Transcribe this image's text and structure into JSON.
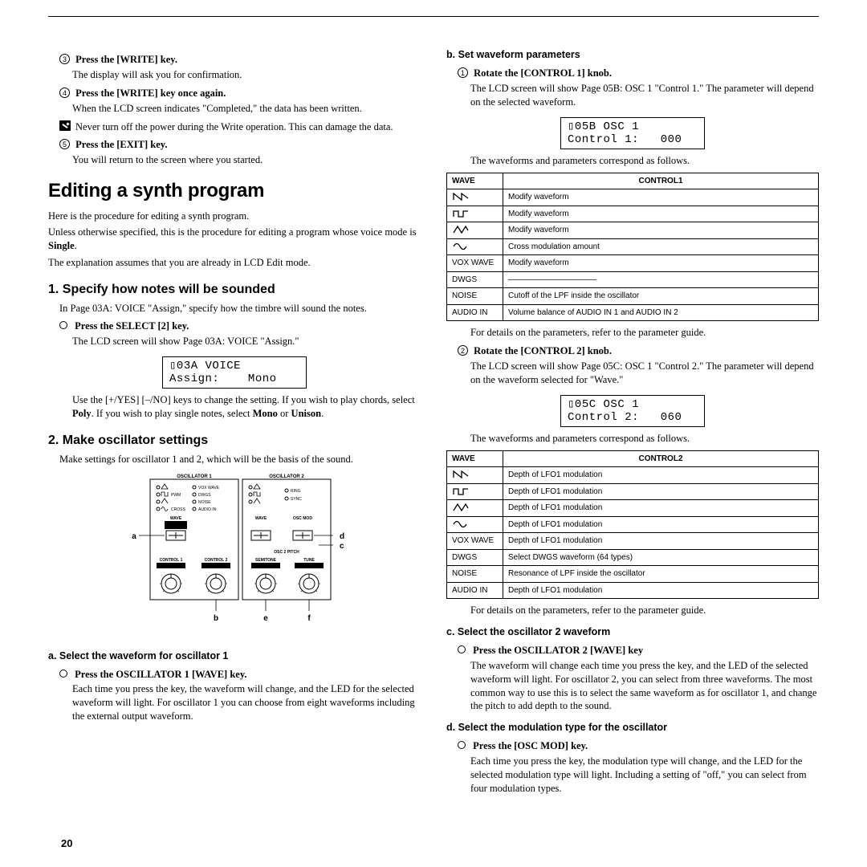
{
  "page_number": "20",
  "left": {
    "step3_label": "Press the [WRITE] key.",
    "step3_body": "The display will ask you for confirmation.",
    "step4_label": "Press the [WRITE] key once again.",
    "step4_body": "When the LCD screen indicates \"Completed,\" the data has been written.",
    "warn": "Never turn off the power during the Write operation. This can damage the data.",
    "step5_label": "Press the [EXIT] key.",
    "step5_body": "You will return to the screen where you started.",
    "h1": "Editing a synth program",
    "intro1": "Here is the procedure for editing a synth program.",
    "intro2_a": "Unless otherwise specified, this is the procedure for editing a program whose voice mode is ",
    "intro2_b": "Single",
    "intro2_c": ".",
    "intro3": "The explanation assumes that you are already in LCD Edit mode.",
    "sec1_h2": "1. Specify how notes will be sounded",
    "sec1_body": "In Page 03A: VOICE \"Assign,\" specify how the timbre will sound the notes.",
    "sec1_step_label": "Press the SELECT [2] key.",
    "sec1_step_body": "The LCD screen will show Page 03A: VOICE \"Assign.\"",
    "lcd1_line1": "▯03A VOICE",
    "lcd1_line2": "Assign:    Mono",
    "sec1_tail_a": "Use the [+/YES] [–/NO] keys to change the setting. If you wish to play chords, select ",
    "sec1_tail_b": "Poly",
    "sec1_tail_c": ". If you wish to play single notes, select ",
    "sec1_tail_d": "Mono",
    "sec1_tail_e": " or ",
    "sec1_tail_f": "Unison",
    "sec1_tail_g": ".",
    "sec2_h2": "2. Make oscillator settings",
    "sec2_body": "Make settings for oscillator 1 and 2, which will be the basis of the sound.",
    "osc_panel": {
      "osc1_title": "OSCILLATOR 1",
      "osc2_title": "OSCILLATOR 2",
      "labels": {
        "vox_wave": "VOX WAVE",
        "dwgs": "DWGS",
        "noise": "NOISE",
        "pwm": "PWM",
        "cross": "CROSS",
        "audio_in": "AUDIO IN",
        "ring": "RING",
        "sync": "SYNC",
        "wave": "WAVE",
        "osc_mod": "OSC MOD",
        "osc2_pitch": "OSC 2 PITCH",
        "control1": "CONTROL 1",
        "control2": "CONTROL 2",
        "semitone": "SEMITONE",
        "tune": "TUNE"
      },
      "callouts": {
        "a": "a",
        "b": "b",
        "c": "c",
        "d": "d",
        "e": "e",
        "f": "f"
      }
    },
    "sec2a_h3": "a. Select the waveform for oscillator 1",
    "sec2a_step_label": "Press the OSCILLATOR 1 [WAVE] key.",
    "sec2a_step_body": "Each time you press the key, the waveform will change, and the LED for the selected waveform will light. For oscillator 1 you can choose from eight waveforms including the external output waveform."
  },
  "right": {
    "secb_h3": "b. Set waveform parameters",
    "secb_step1_label": "Rotate the [CONTROL 1] knob.",
    "secb_step1_body": "The LCD screen will show Page 05B: OSC 1 \"Control 1.\" The parameter will depend on the selected waveform.",
    "lcd2_line1": "▯05B OSC 1",
    "lcd2_line2": "Control 1:   000",
    "secb_tail": "The waveforms and parameters correspond as follows.",
    "table1": {
      "head_wave": "WAVE",
      "head_ctrl": "CONTROL1",
      "rows": [
        {
          "wave": "saw",
          "text": "Modify waveform"
        },
        {
          "wave": "pulse",
          "text": "Modify waveform"
        },
        {
          "wave": "tri",
          "text": "Modify waveform"
        },
        {
          "wave": "sine",
          "text": "Cross modulation amount"
        },
        {
          "wave": "VOX WAVE",
          "text": "Modify waveform"
        },
        {
          "wave": "DWGS",
          "text": "———————————"
        },
        {
          "wave": "NOISE",
          "text": "Cutoff of the LPF inside the oscillator"
        },
        {
          "wave": "AUDIO IN",
          "text": "Volume balance of AUDIO IN 1 and AUDIO IN 2"
        }
      ]
    },
    "secb_after": "For details on the parameters, refer to the parameter guide.",
    "secb_step2_label": "Rotate the [CONTROL 2] knob.",
    "secb_step2_body": "The LCD screen will show Page 05C: OSC 1 \"Control 2.\" The parameter will depend on the waveform selected for \"Wave.\"",
    "lcd3_line1": "▯05C OSC 1",
    "lcd3_line2": "Control 2:   060",
    "secb_tail2": "The waveforms and parameters correspond as follows.",
    "table2": {
      "head_wave": "WAVE",
      "head_ctrl": "CONTROL2",
      "rows": [
        {
          "wave": "saw",
          "text": "Depth of LFO1 modulation"
        },
        {
          "wave": "pulse",
          "text": "Depth of LFO1 modulation"
        },
        {
          "wave": "tri",
          "text": "Depth of LFO1 modulation"
        },
        {
          "wave": "sine",
          "text": "Depth of LFO1 modulation"
        },
        {
          "wave": "VOX WAVE",
          "text": "Depth of LFO1 modulation"
        },
        {
          "wave": "DWGS",
          "text": "Select DWGS waveform (64 types)"
        },
        {
          "wave": "NOISE",
          "text": "Resonance of LPF inside the oscillator"
        },
        {
          "wave": "AUDIO IN",
          "text": "Depth of LFO1 modulation"
        }
      ]
    },
    "secb_after2": "For details on the parameters, refer to the parameter guide.",
    "secc_h3": "c. Select the oscillator 2 waveform",
    "secc_step_label": "Press the OSCILLATOR 2 [WAVE] key",
    "secc_step_body": "The waveform will change each time you press the key, and the LED of the selected waveform will light. For oscillator 2, you can select from three waveforms. The most common way to use this is to select the same waveform as for oscillator 1, and change the pitch to add depth to the sound.",
    "secd_h3": "d. Select the modulation type for the oscillator",
    "secd_step_label": "Press the [OSC MOD] key.",
    "secd_step_body": "Each time you press the key, the modulation type will change, and the LED for the selected modulation type will light. Including a setting of \"off,\" you can select from four modulation types."
  }
}
